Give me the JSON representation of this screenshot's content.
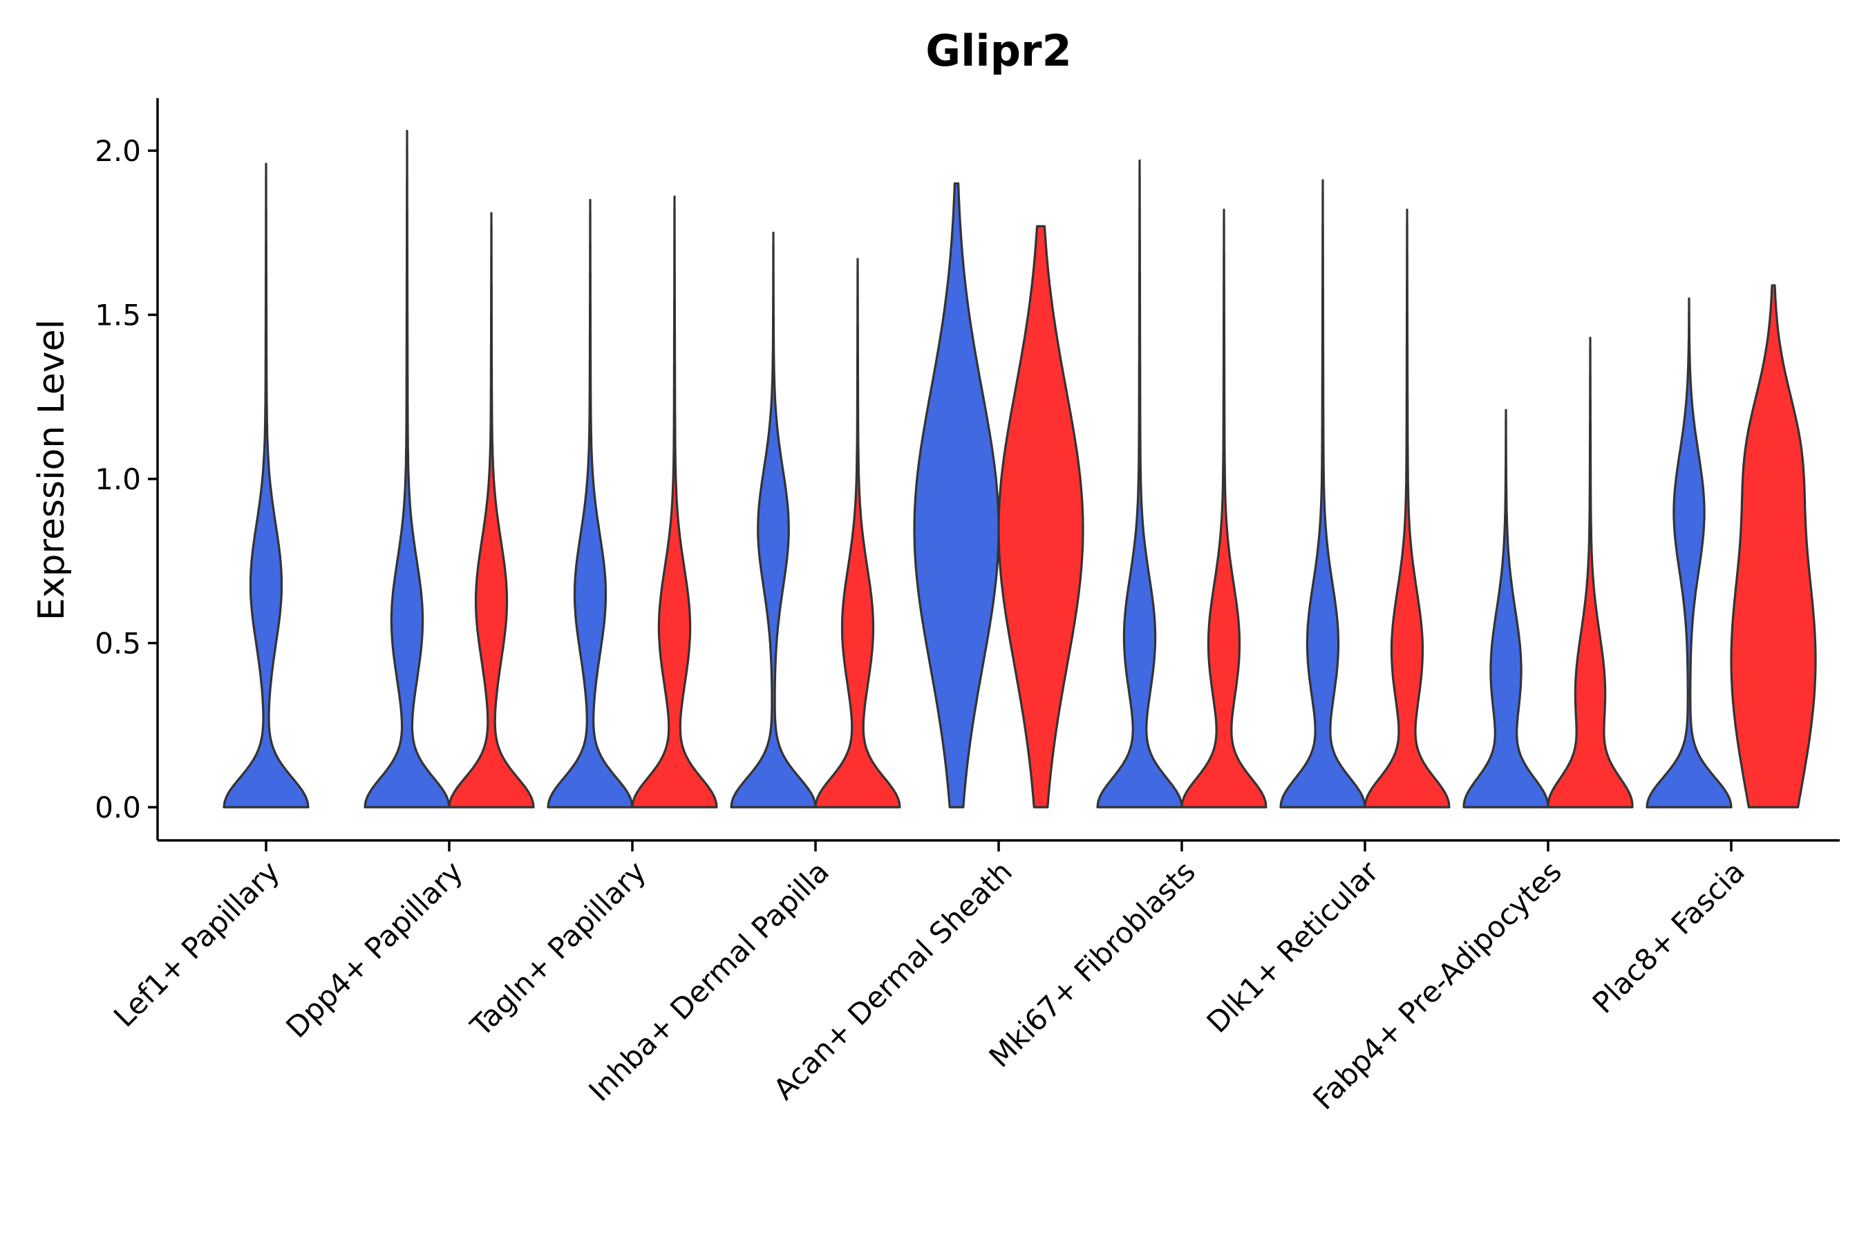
{
  "chart_data": {
    "type": "violin",
    "title": "Glipr2",
    "xlabel": "",
    "ylabel": "Expression Level",
    "ylim": [
      -0.1,
      2.15
    ],
    "yticks": [
      "0.0",
      "0.5",
      "1.0",
      "1.5",
      "2.0"
    ],
    "ytick_values": [
      0,
      0.5,
      1.0,
      1.5,
      2.0
    ],
    "categories": [
      "Lef1+ Papillary",
      "Dpp4+ Papillary",
      "Tagln+ Papillary",
      "Inhba+ Dermal Papilla",
      "Acan+ Dermal Sheath",
      "Mki67+ Fibroblasts",
      "Dlk1+ Reticular",
      "Fabp4+ Pre-Adipocytes",
      "Plac8+ Fascia"
    ],
    "series": [
      {
        "name": "group-blue",
        "color": "#4169E1",
        "max_values": [
          1.96,
          2.06,
          1.85,
          1.75,
          1.9,
          1.97,
          1.91,
          1.21,
          1.55
        ],
        "modes": [
          0.0,
          0.0,
          0.0,
          0.0,
          0.85,
          0.0,
          0.0,
          0.0,
          0.0
        ],
        "secondary_modes": [
          0.68,
          0.57,
          0.65,
          0.85,
          null,
          0.52,
          0.5,
          0.42,
          0.9
        ]
      },
      {
        "name": "group-red",
        "color": "#FF3030",
        "max_values": [
          null,
          1.81,
          1.86,
          1.67,
          1.77,
          1.82,
          1.82,
          1.43,
          1.59
        ],
        "modes": [
          null,
          0.0,
          0.0,
          0.0,
          0.85,
          0.0,
          0.0,
          0.0,
          0.45
        ],
        "secondary_modes": [
          null,
          0.63,
          0.55,
          0.55,
          null,
          0.5,
          0.48,
          0.35,
          1.1
        ]
      }
    ],
    "legend": "none",
    "grid": false
  }
}
